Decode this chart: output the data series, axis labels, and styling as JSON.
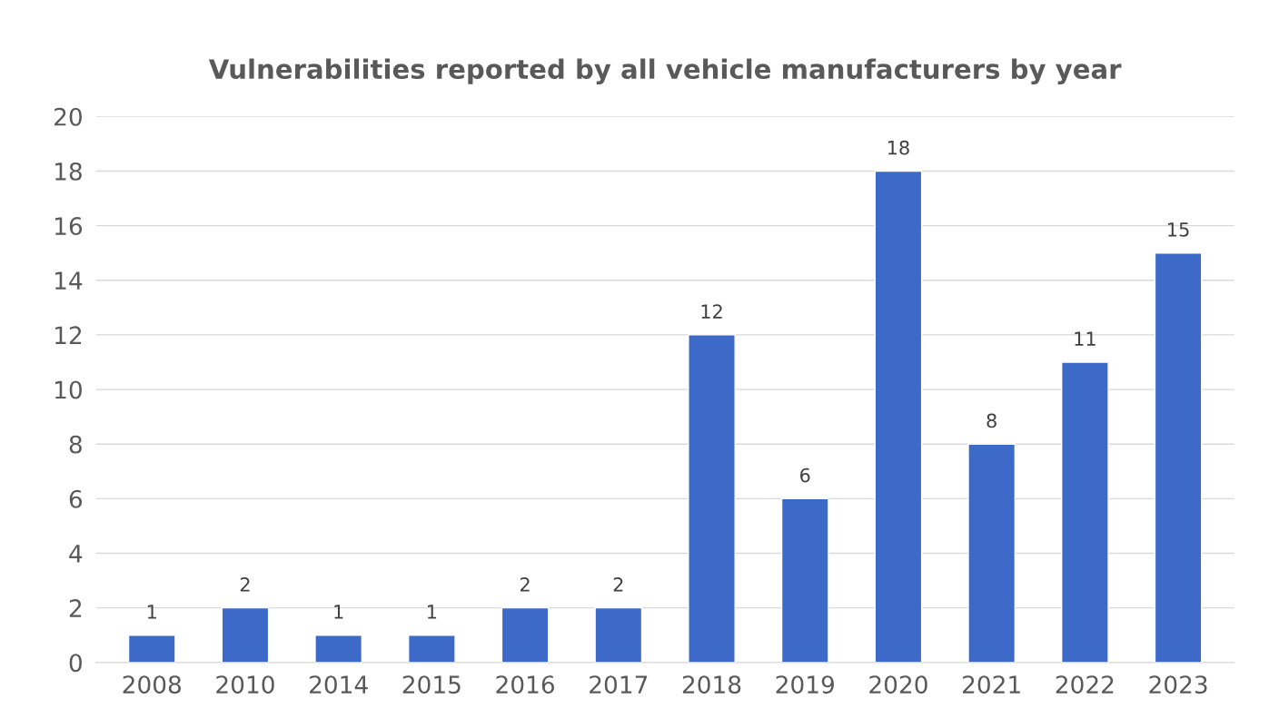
{
  "chart_data": {
    "type": "bar",
    "title": "Vulnerabilities reported by all vehicle manufacturers by year",
    "categories": [
      "2008",
      "2010",
      "2014",
      "2015",
      "2016",
      "2017",
      "2018",
      "2019",
      "2020",
      "2021",
      "2022",
      "2023"
    ],
    "values": [
      1,
      2,
      1,
      1,
      2,
      2,
      12,
      6,
      18,
      8,
      11,
      15
    ],
    "color": "#3d6ac9",
    "ylim": [
      0,
      20
    ],
    "yticks": [
      0,
      2,
      4,
      6,
      8,
      10,
      12,
      14,
      16,
      18,
      20
    ],
    "grid": "y",
    "data_labels": true
  }
}
